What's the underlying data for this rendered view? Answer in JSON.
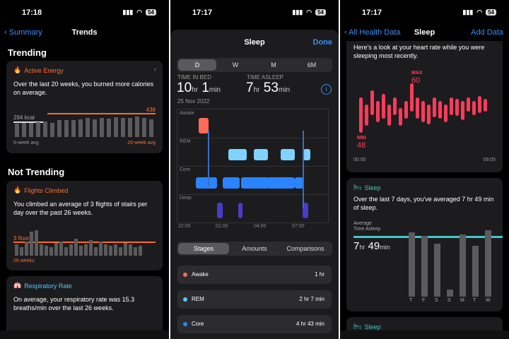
{
  "panel1": {
    "time": "17:18",
    "battery": "54",
    "back": "Summary",
    "title": "Trends",
    "trending": "Trending",
    "not_trending": "Not Trending",
    "active_energy": {
      "name": "Active Energy",
      "desc": "Over the last 20 weeks, you burned more calories on average.",
      "low_value": "294 kcal",
      "high_value": "438",
      "left_caption": "6-week avg",
      "right_caption": "20-week avg",
      "bars": [
        0.55,
        0.6,
        0.58,
        0.62,
        0.65,
        0.6,
        0.7,
        0.72,
        0.7,
        0.75,
        0.78,
        0.74,
        0.8,
        0.76,
        0.82,
        0.8,
        0.78,
        0.85,
        0.8,
        0.75
      ]
    },
    "flights": {
      "name": "Flights Climbed",
      "desc": "You climbed an average of 3 flights of stairs per day over the past 26 weeks.",
      "value": "3 floors",
      "caption": "26 weeks",
      "bars": [
        0.4,
        0.3,
        0.5,
        0.85,
        0.9,
        0.4,
        0.35,
        0.3,
        0.45,
        0.5,
        0.3,
        0.4,
        0.6,
        0.35,
        0.4,
        0.55,
        0.3,
        0.5,
        0.4,
        0.35,
        0.4,
        0.3,
        0.45,
        0.4,
        0.3,
        0.35
      ]
    },
    "respiratory": {
      "name": "Respiratory Rate",
      "desc": "On average, your respiratory rate was 15.3 breaths/min over the last 26 weeks."
    }
  },
  "panel2": {
    "time": "17:17",
    "battery": "54",
    "title": "Sleep",
    "done": "Done",
    "segments": [
      "D",
      "W",
      "M",
      "6M"
    ],
    "time_in_bed_label": "TIME IN BED",
    "time_asleep_label": "TIME ASLEEP",
    "bed_hr": "10",
    "bed_min": "1",
    "asleep_hr": "7",
    "asleep_min": "53",
    "unit_hr": "hr",
    "unit_min": "min",
    "date": "25 Nov 2022",
    "stages": [
      "Awake",
      "REM",
      "Core",
      "Deep"
    ],
    "x_ticks": [
      "22:00",
      "01:00",
      "04:00",
      "07:00"
    ],
    "tabs": [
      "Stages",
      "Amounts",
      "Comparisons"
    ],
    "rows": [
      {
        "name": "Awake",
        "value": "1 hr",
        "color": "#ff6b5a"
      },
      {
        "name": "REM",
        "value": "2 hr 7 min",
        "color": "#5ac8fa"
      },
      {
        "name": "Core",
        "value": "4 hr 43 min",
        "color": "#2a84ff"
      }
    ]
  },
  "panel3": {
    "time": "17:17",
    "battery": "54",
    "back": "All Health Data",
    "title": "Sleep",
    "right": "Add Data",
    "heart_desc": "Here's a look at your heart rate while you were sleeping most recently.",
    "max_label": "MAX",
    "max_value": "60",
    "min_label": "MIN",
    "min_value": "48",
    "start_time": "00:00",
    "end_time": "09:05",
    "sleep_card_title": "Sleep",
    "sleep_desc": "Over the last 7 days, you've averaged 7 hr 49 min of sleep.",
    "avg_label": "Average\nTime Asleep",
    "avg_hr": "7",
    "avg_min": "49",
    "days": [
      "T",
      "F",
      "S",
      "S",
      "M",
      "T",
      "W"
    ],
    "day_bars": [
      0.95,
      0.9,
      0.78,
      0.1,
      0.92,
      0.75,
      0.98
    ],
    "footer_title": "Sleep"
  }
}
